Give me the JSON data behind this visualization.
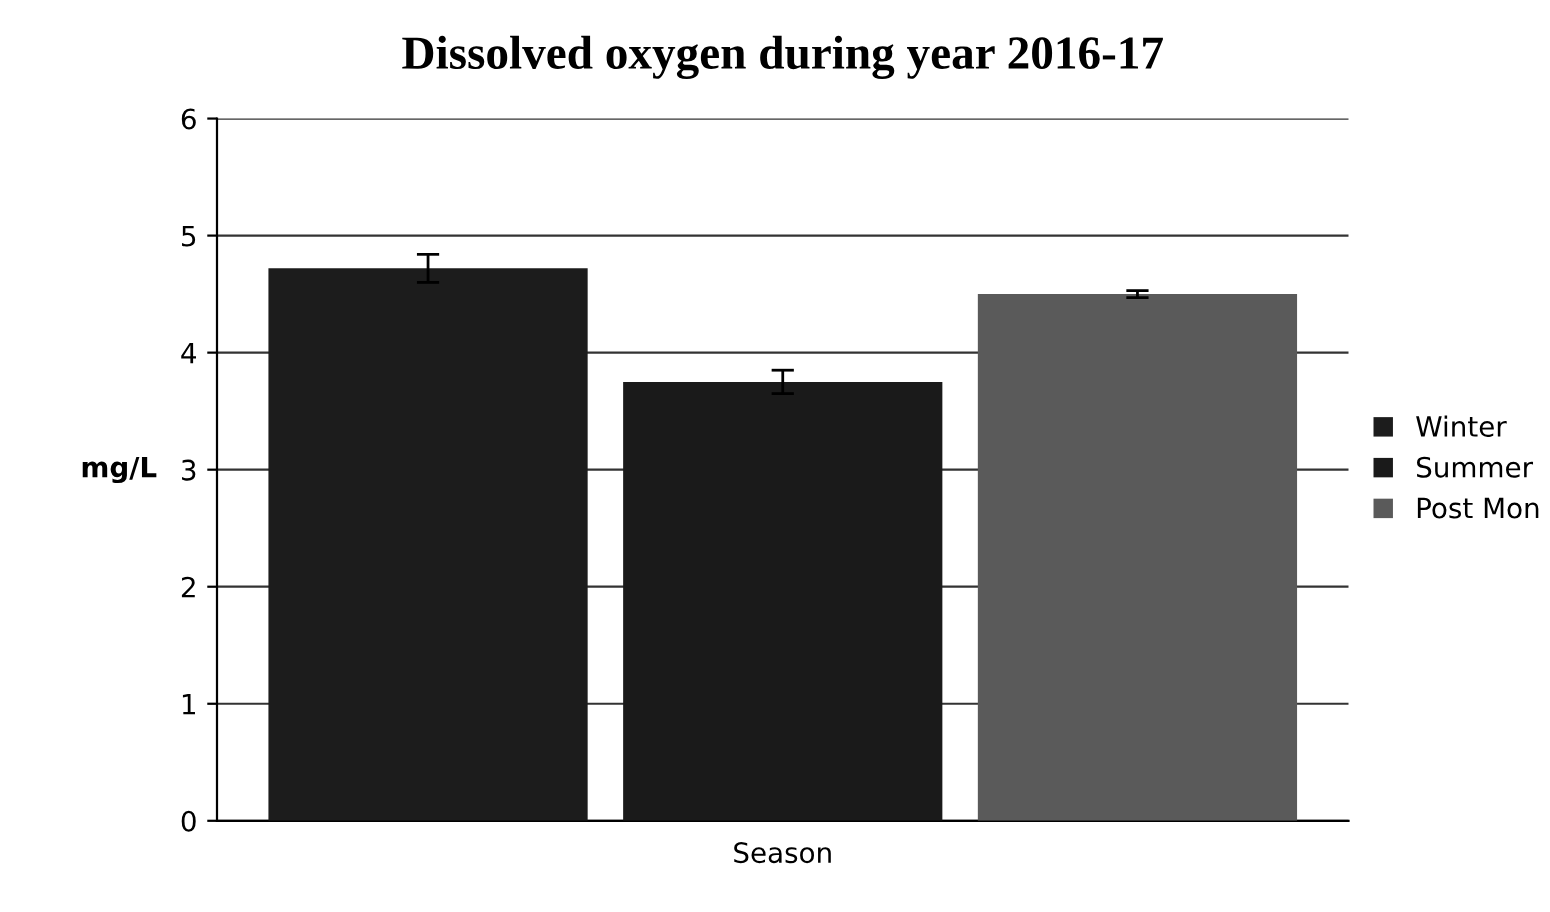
{
  "chart_data": {
    "type": "bar",
    "title": "Dissolved oxygen during year 2016-17",
    "xlabel": "Season",
    "ylabel": "mg/L",
    "categories": [
      null
    ],
    "series": [
      {
        "name": "Winter",
        "color": "#1c1c1c",
        "values": [
          4.72
        ],
        "errors": [
          0.12
        ]
      },
      {
        "name": "Summer",
        "color": "#1a1a1a",
        "values": [
          3.75
        ],
        "errors": [
          0.1
        ]
      },
      {
        "name": "Post Mon",
        "color": "#5a5a5a",
        "values": [
          4.5
        ],
        "errors": [
          0.03
        ]
      }
    ],
    "ylim": [
      0,
      6
    ],
    "yticks": [
      0,
      1,
      2,
      3,
      4,
      5,
      6
    ],
    "grid": "y",
    "legend": "right"
  }
}
